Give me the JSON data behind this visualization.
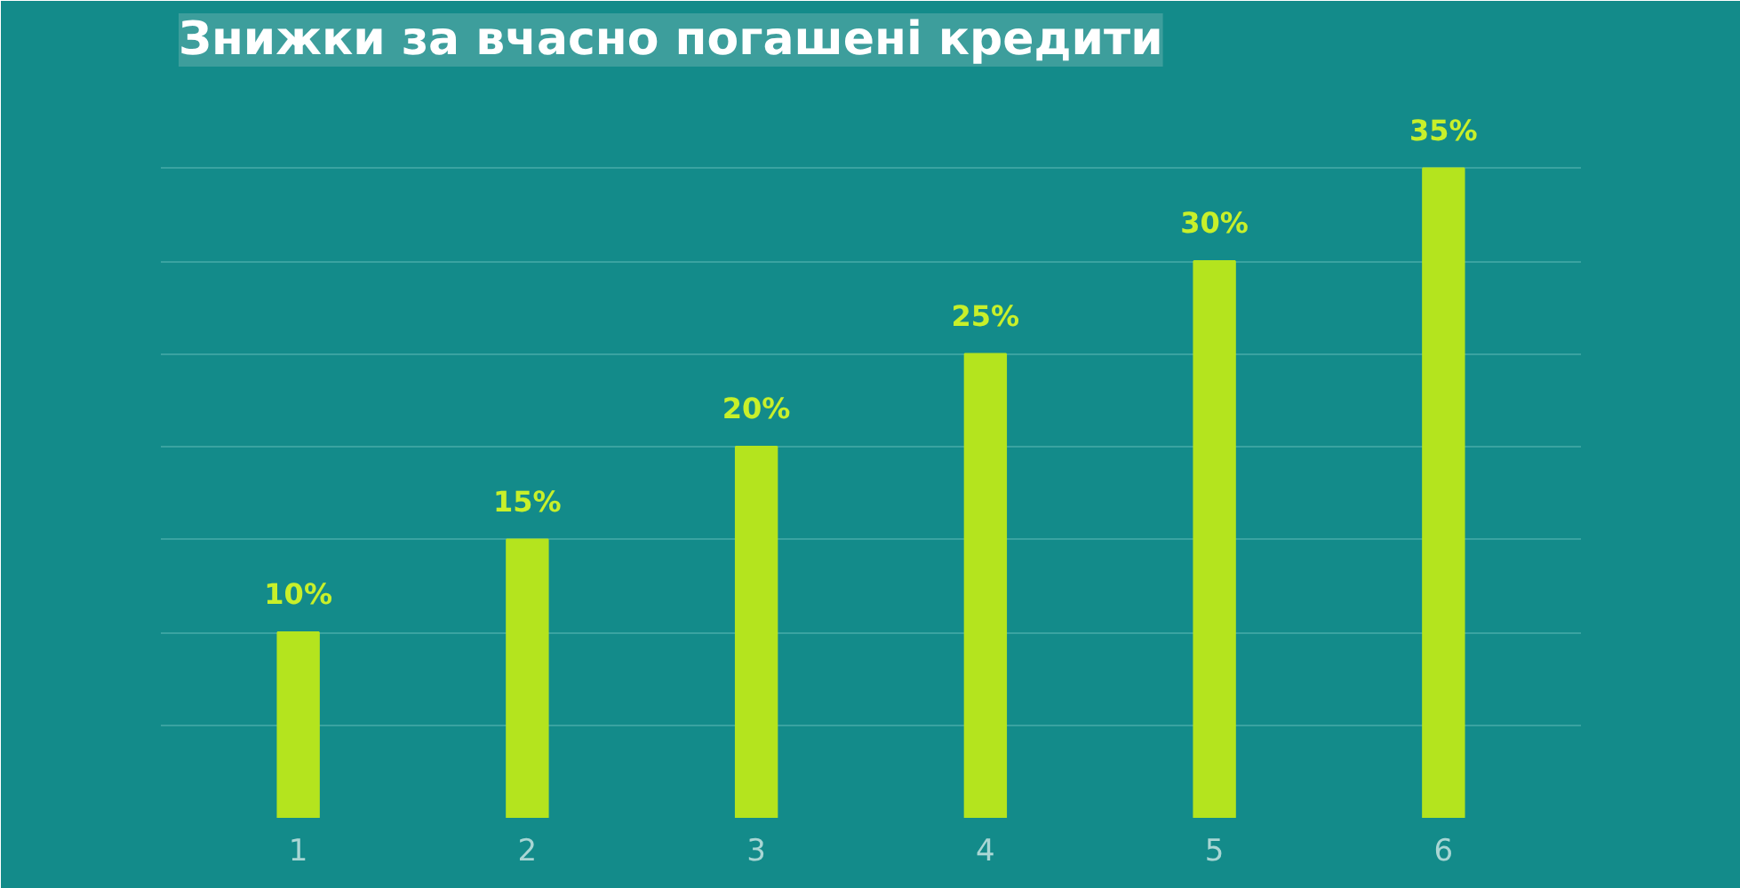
{
  "chart_data": {
    "type": "bar",
    "title": "Знижки за вчасно погашені кредити",
    "categories": [
      "1",
      "2",
      "3",
      "4",
      "5",
      "6"
    ],
    "values": [
      10,
      15,
      20,
      25,
      30,
      35
    ],
    "value_labels": [
      "10%",
      "15%",
      "20%",
      "25%",
      "30%",
      "35%"
    ],
    "color": "#b4e41e",
    "ylim": [
      0,
      40
    ],
    "yticks": [
      {
        "value": 0,
        "label": null
      },
      {
        "value": 5,
        "label": null
      },
      {
        "value": 10,
        "label": null
      },
      {
        "value": 15,
        "label": null
      },
      {
        "value": 20,
        "label": null
      },
      {
        "value": 25,
        "label": null
      },
      {
        "value": 30,
        "label": null
      },
      {
        "value": 35,
        "label": null
      }
    ],
    "grid": "y",
    "tick_labels": "x"
  }
}
